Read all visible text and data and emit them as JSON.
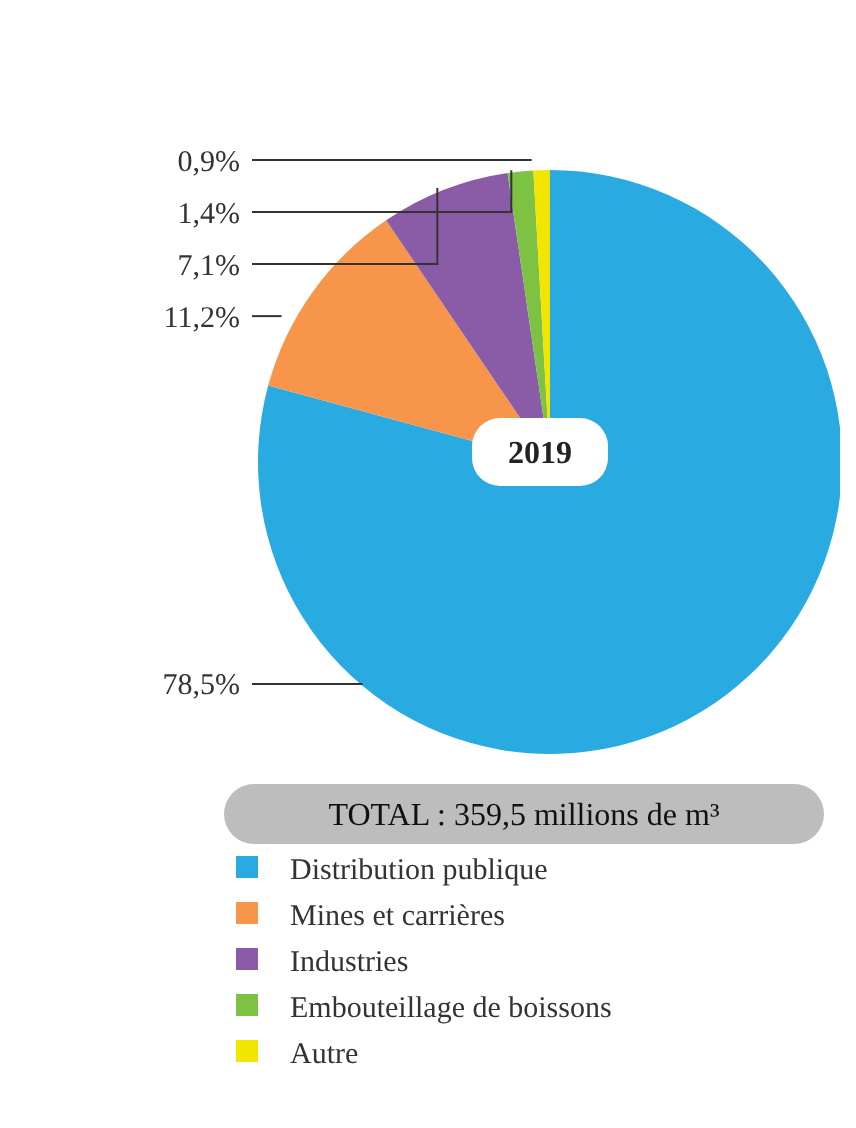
{
  "chart_data": {
    "type": "pie",
    "subtitle": "2019",
    "annotations": [
      "TOTAL : 359,5 millions de m³"
    ],
    "categories": [
      "Distribution publique",
      "Mines et carrières",
      "Industries",
      "Embouteillage de boissons",
      "Autre"
    ],
    "values": [
      78.5,
      11.2,
      7.1,
      1.4,
      0.9
    ],
    "value_labels": [
      "78,5%",
      "11,2%",
      "7,1%",
      "1,4%",
      "0,9%"
    ],
    "colors": [
      "#29abe2",
      "#f7954a",
      "#8a5ca8",
      "#7dc242",
      "#f2e600"
    ],
    "legend": "bottom"
  }
}
